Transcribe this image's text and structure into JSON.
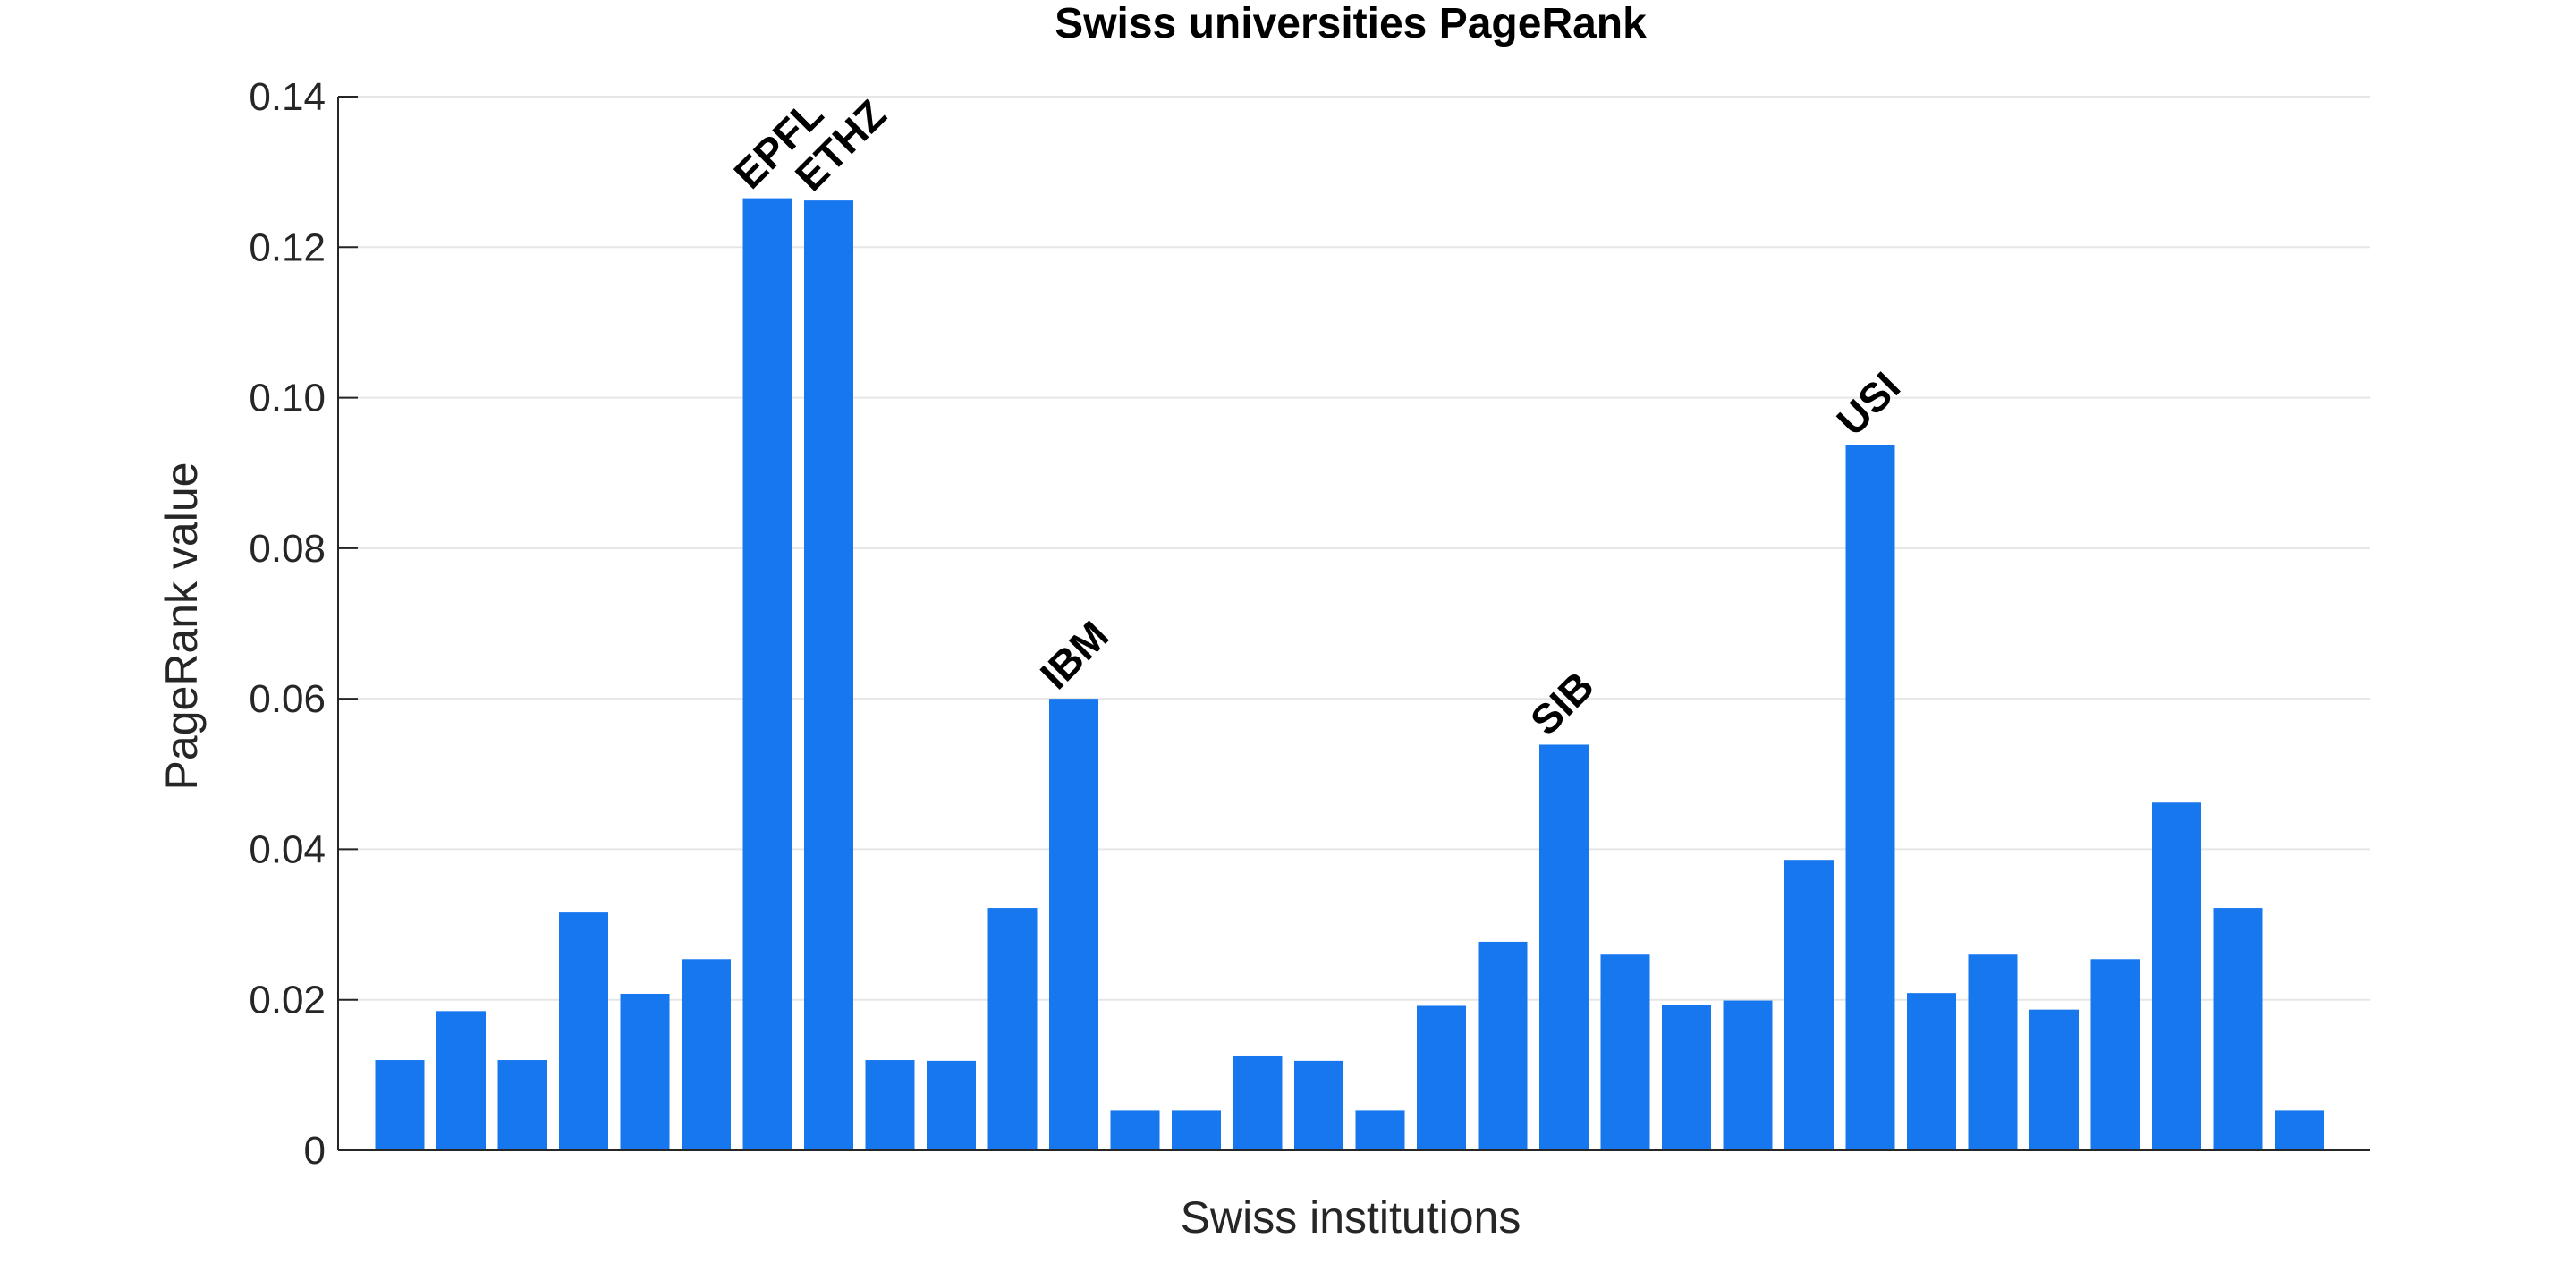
{
  "chart_data": {
    "type": "bar",
    "title": "Swiss universities PageRank",
    "xlabel": "Swiss institutions",
    "ylabel": "PageRank value",
    "ylim": [
      0,
      0.14
    ],
    "yticks": [
      0,
      0.02,
      0.04,
      0.06,
      0.08,
      0.1,
      0.12,
      0.14
    ],
    "ytick_labels": [
      "0",
      "0.02",
      "0.04",
      "0.06",
      "0.08",
      "0.10",
      "0.12",
      "0.14"
    ],
    "grid": true,
    "bar_color": "#1777ef",
    "values": [
      0.012,
      0.0185,
      0.012,
      0.0316,
      0.0208,
      0.0254,
      0.1265,
      0.1262,
      0.012,
      0.0119,
      0.0322,
      0.06,
      0.0053,
      0.0053,
      0.0126,
      0.0119,
      0.0053,
      0.0192,
      0.0277,
      0.0539,
      0.026,
      0.0193,
      0.0199,
      0.0386,
      0.0937,
      0.0209,
      0.026,
      0.0187,
      0.0254,
      0.0462,
      0.0322,
      0.0053
    ],
    "annotations": [
      {
        "index": 6,
        "text": "EPFL"
      },
      {
        "index": 7,
        "text": "ETHZ"
      },
      {
        "index": 11,
        "text": "IBM"
      },
      {
        "index": 19,
        "text": "SIB"
      },
      {
        "index": 24,
        "text": "USI"
      }
    ]
  }
}
